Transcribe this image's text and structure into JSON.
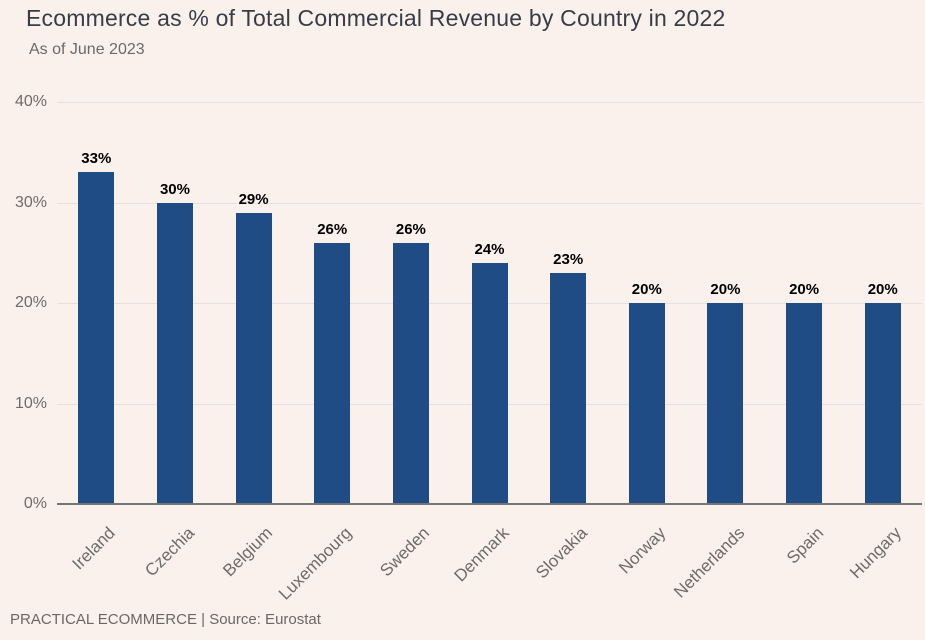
{
  "chart_data": {
    "type": "bar",
    "title": "Ecommerce as % of Total Commercial Revenue by Country in 2022",
    "subtitle": "As of June 2023",
    "categories": [
      "Ireland",
      "Czechia",
      "Belgium",
      "Luxembourg",
      "Sweden",
      "Denmark",
      "Slovakia",
      "Norway",
      "Netherlands",
      "Spain",
      "Hungary"
    ],
    "values": [
      33,
      30,
      29,
      26,
      26,
      24,
      23,
      20,
      20,
      20,
      20
    ],
    "value_labels": [
      "33%",
      "30%",
      "29%",
      "26%",
      "26%",
      "24%",
      "23%",
      "20%",
      "20%",
      "20%",
      "20%"
    ],
    "xlabel": "",
    "ylabel": "",
    "ylim": [
      0,
      40
    ],
    "yticks": [
      {
        "value": 0,
        "label": "0%"
      },
      {
        "value": 10,
        "label": "10%"
      },
      {
        "value": 20,
        "label": "20%"
      },
      {
        "value": 30,
        "label": "30%"
      },
      {
        "value": 40,
        "label": "40%"
      }
    ],
    "grid": "horizontal",
    "legend": "none",
    "bar_color": "#1f4c84",
    "value_label_color": "#000000"
  },
  "footer": {
    "text": "PRACTICAL ECOMMERCE | Source: Eurostat"
  },
  "theme": {
    "background": "#faf1ec",
    "title_color": "#363d47",
    "subtitle_color": "#6a6a6a",
    "axis_label_color": "#6e6b68",
    "gridline_color": "#e6e1dd",
    "baseline_color": "#757575",
    "footer_color": "#6b6764"
  }
}
